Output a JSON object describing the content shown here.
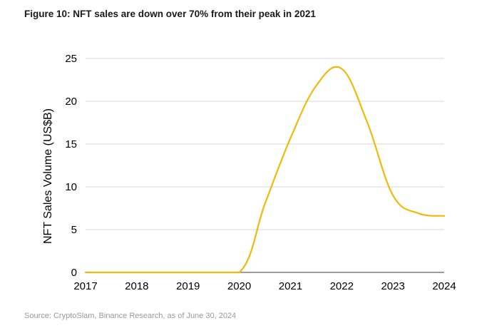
{
  "figure": {
    "title": "Figure 10: NFT sales are down over 70% from their peak in 2021",
    "source": "Source: CryptoSlam, Binance Research, as of June 30, 2024"
  },
  "chart_data": {
    "type": "line",
    "title": "Figure 10: NFT sales are down over 70% from their peak in 2021",
    "xlabel": "",
    "ylabel": "NFT Sales Volume (US$B)",
    "x_ticks": [
      "2017",
      "2018",
      "2019",
      "2020",
      "2021",
      "2022",
      "2023",
      "2024"
    ],
    "y_ticks": [
      "0",
      "5",
      "10",
      "15",
      "20",
      "25"
    ],
    "xlim": [
      2017,
      2024
    ],
    "ylim": [
      0,
      25
    ],
    "grid": "horizontal",
    "colors": {
      "line": "#F0B90B",
      "grid": "#d9d9d9",
      "axis": "#7f7f7f"
    },
    "series": [
      {
        "x": [
          2017,
          2018,
          2019,
          2020,
          2020.5,
          2021,
          2021.5,
          2022,
          2022.5,
          2023,
          2023.5,
          2024
        ],
        "values": [
          0,
          0,
          0,
          0,
          8.0,
          15.7,
          21.8,
          23.8,
          17.5,
          9.0,
          6.9,
          6.6
        ]
      }
    ]
  }
}
